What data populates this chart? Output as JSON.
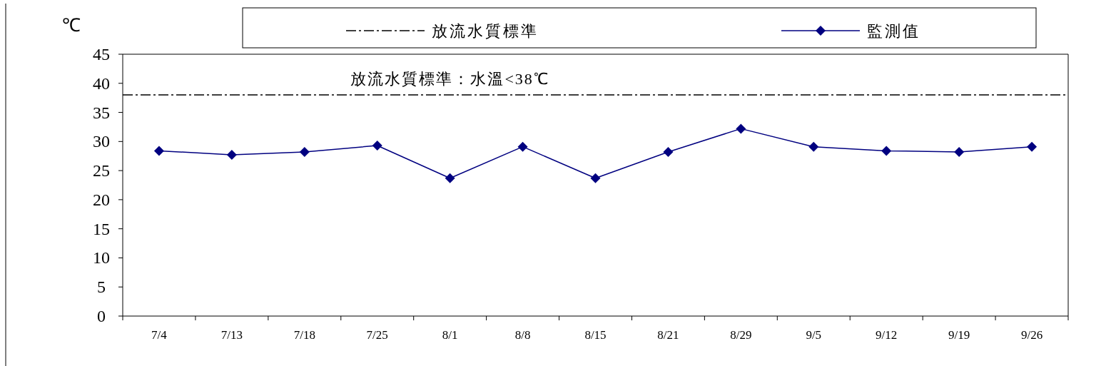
{
  "chart_data": {
    "type": "line",
    "ylabel": "℃",
    "categories": [
      "7/4",
      "7/13",
      "7/18",
      "7/25",
      "8/1",
      "8/8",
      "8/15",
      "8/21",
      "8/29",
      "9/5",
      "9/12",
      "9/19",
      "9/26"
    ],
    "series": [
      {
        "name": "監測值",
        "color": "#000080",
        "values": [
          28.4,
          27.7,
          28.2,
          29.3,
          23.7,
          29.1,
          23.7,
          28.2,
          32.2,
          29.1,
          28.4,
          28.2,
          29.1
        ]
      }
    ],
    "ylim": [
      0,
      45
    ],
    "yticks": [
      0,
      5,
      10,
      15,
      20,
      25,
      30,
      35,
      40,
      45
    ],
    "ref_lines": [
      {
        "axis": "y",
        "value": 38,
        "label": "放流水質標準",
        "color": "#000000",
        "line_style": "dashdot"
      }
    ],
    "annotations": [
      {
        "text": "放流水質標準：水溫<38℃",
        "x": "8/1",
        "y": 38
      }
    ],
    "marker": "diamond",
    "line_style": "solid",
    "grid": false,
    "legend": "top"
  }
}
